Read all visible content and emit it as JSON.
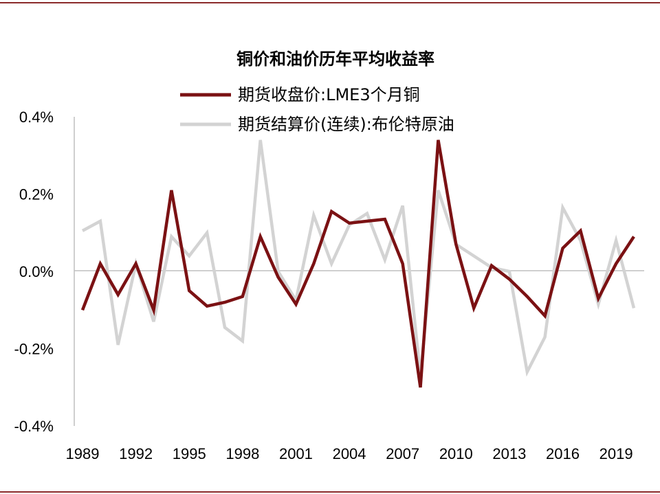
{
  "chart_data": {
    "type": "line",
    "title": "铜价和油价历年平均收益率",
    "xlabel": "",
    "ylabel": "",
    "x": [
      1989,
      1990,
      1991,
      1992,
      1993,
      1994,
      1995,
      1996,
      1997,
      1998,
      1999,
      2000,
      2001,
      2002,
      2003,
      2004,
      2005,
      2006,
      2007,
      2008,
      2009,
      2010,
      2011,
      2012,
      2013,
      2014,
      2015,
      2016,
      2017,
      2018,
      2019,
      2020
    ],
    "x_tick_labels": [
      "1989",
      "1992",
      "1995",
      "1998",
      "2001",
      "2004",
      "2007",
      "2010",
      "2013",
      "2016",
      "2019"
    ],
    "y_tick_labels": [
      "0.4%",
      "0.2%",
      "0.0%",
      "-0.2%",
      "-0.4%"
    ],
    "ylim": [
      -0.4,
      0.4
    ],
    "y_unit": "%",
    "legend_position": "top",
    "grid": false,
    "series": [
      {
        "name": "期货收盘价:LME3个月铜",
        "color": "#7b1113",
        "values": [
          -0.1,
          0.02,
          -0.06,
          0.02,
          -0.1,
          0.21,
          -0.05,
          -0.09,
          -0.08,
          -0.065,
          0.09,
          -0.015,
          -0.085,
          0.02,
          0.155,
          0.125,
          0.13,
          0.135,
          0.02,
          -0.3,
          0.34,
          0.07,
          -0.095,
          0.015,
          -0.02,
          -0.065,
          -0.115,
          0.06,
          0.105,
          -0.07,
          0.02,
          0.09
        ]
      },
      {
        "name": "期货结算价(连续):布伦特原油",
        "color": "#d3d3d3",
        "values": [
          0.105,
          0.13,
          -0.19,
          0.02,
          -0.13,
          0.09,
          0.04,
          0.1,
          -0.145,
          -0.18,
          0.34,
          0.0,
          -0.075,
          0.145,
          0.02,
          0.12,
          0.15,
          0.03,
          0.17,
          -0.27,
          0.21,
          0.07,
          0.04,
          0.01,
          0.0,
          -0.26,
          -0.17,
          0.165,
          0.08,
          -0.085,
          0.08,
          -0.095
        ]
      }
    ]
  }
}
